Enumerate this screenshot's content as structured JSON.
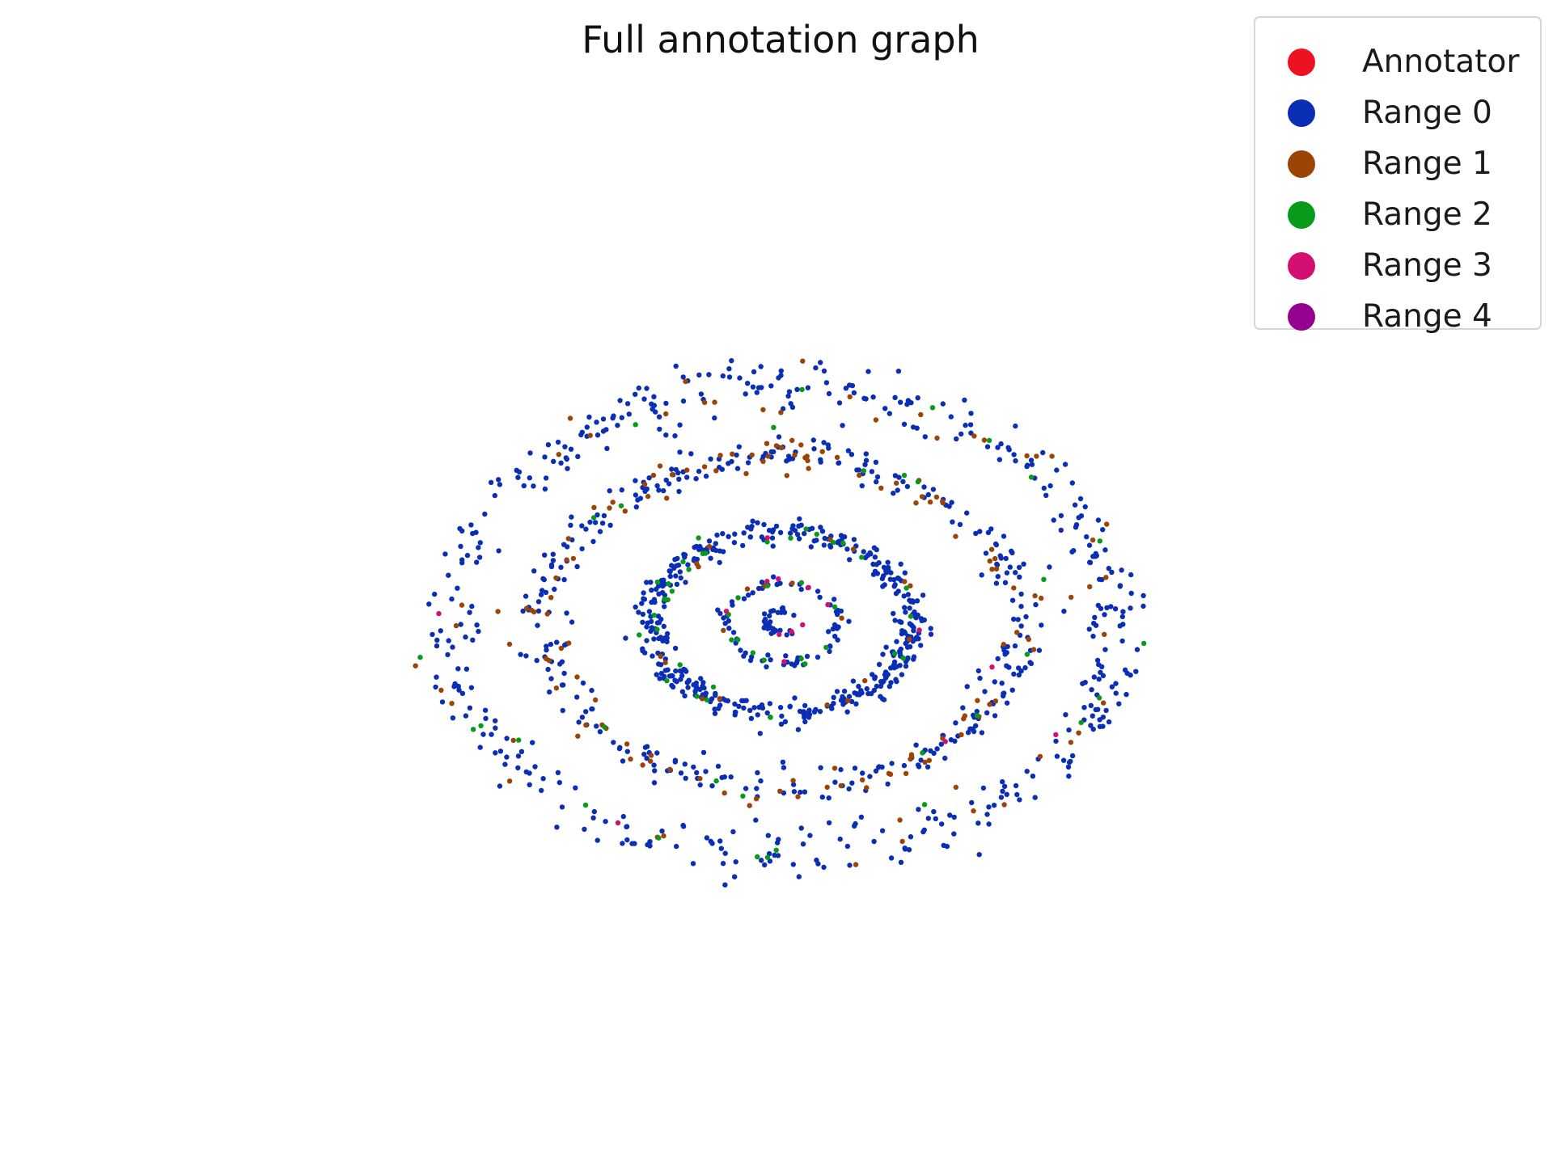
{
  "chart_data": {
    "type": "scatter",
    "title": "Full annotation graph",
    "xlabel": "",
    "ylabel": "",
    "axes_visible": false,
    "grid": false,
    "xlim": [
      -1.1,
      1.1
    ],
    "ylim": [
      -1.1,
      1.1
    ],
    "legend_position": "top-right",
    "series": [
      {
        "name": "Annotator",
        "color": "#ee1122",
        "rings": []
      },
      {
        "name": "Range 0",
        "color": "#0a2fb5",
        "rings": [
          {
            "radius_x": 0.05,
            "radius_y": 0.05,
            "count": 30,
            "jitter": 0.01
          },
          {
            "radius_x": 0.17,
            "radius_y": 0.17,
            "count": 70,
            "jitter": 0.015
          },
          {
            "radius_x": 0.39,
            "radius_y": 0.39,
            "count": 420,
            "jitter": 0.03
          },
          {
            "radius_x": 0.71,
            "radius_y": 0.71,
            "count": 330,
            "jitter": 0.04
          },
          {
            "radius_x": 1.0,
            "radius_y": 1.0,
            "count": 420,
            "jitter": 0.06
          }
        ]
      },
      {
        "name": "Range 1",
        "color": "#9c4405",
        "rings": [
          {
            "radius_x": 0.17,
            "radius_y": 0.17,
            "count": 5,
            "jitter": 0.015
          },
          {
            "radius_x": 0.39,
            "radius_y": 0.39,
            "count": 15,
            "jitter": 0.03
          },
          {
            "radius_x": 0.71,
            "radius_y": 0.71,
            "count": 110,
            "jitter": 0.04
          },
          {
            "radius_x": 1.0,
            "radius_y": 1.0,
            "count": 45,
            "jitter": 0.06
          }
        ]
      },
      {
        "name": "Range 2",
        "color": "#0a9a1a",
        "rings": [
          {
            "radius_x": 0.17,
            "radius_y": 0.17,
            "count": 12,
            "jitter": 0.015
          },
          {
            "radius_x": 0.39,
            "radius_y": 0.39,
            "count": 30,
            "jitter": 0.03
          },
          {
            "radius_x": 0.71,
            "radius_y": 0.71,
            "count": 12,
            "jitter": 0.04
          },
          {
            "radius_x": 1.0,
            "radius_y": 1.0,
            "count": 20,
            "jitter": 0.06
          }
        ]
      },
      {
        "name": "Range 3",
        "color": "#d40f72",
        "rings": [
          {
            "radius_x": 0.05,
            "radius_y": 0.05,
            "count": 3,
            "jitter": 0.01
          },
          {
            "radius_x": 0.17,
            "radius_y": 0.17,
            "count": 6,
            "jitter": 0.015
          },
          {
            "radius_x": 0.39,
            "radius_y": 0.39,
            "count": 2,
            "jitter": 0.03
          },
          {
            "radius_x": 0.71,
            "radius_y": 0.71,
            "count": 2,
            "jitter": 0.04
          },
          {
            "radius_x": 1.0,
            "radius_y": 1.0,
            "count": 3,
            "jitter": 0.06
          }
        ]
      },
      {
        "name": "Range 4",
        "color": "#940090",
        "rings": []
      }
    ]
  }
}
